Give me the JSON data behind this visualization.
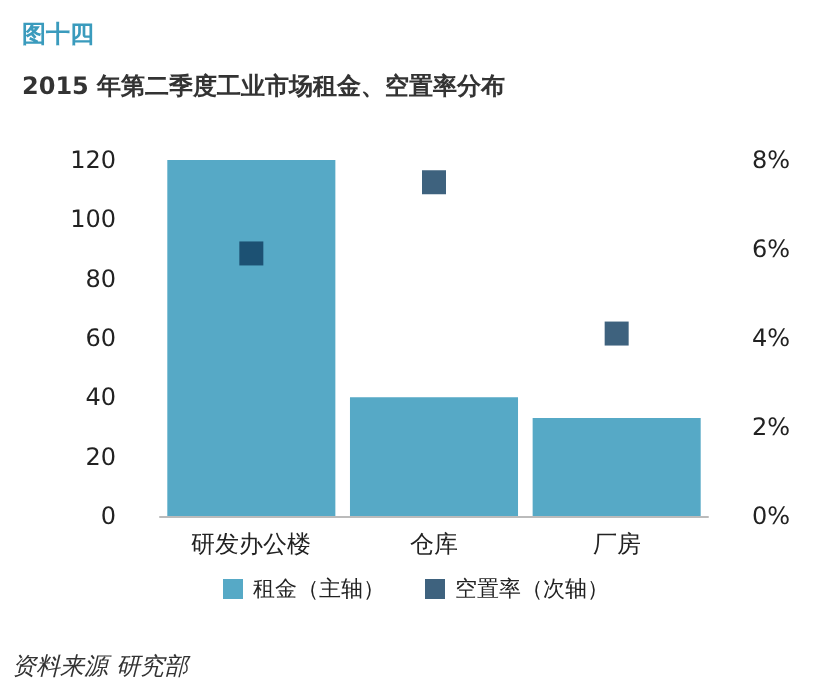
{
  "chart_data": {
    "type": "bar",
    "title": "图十四",
    "subtitle": "2015 年第二季度工业市场租金、空置率分布",
    "categories": [
      "研发办公楼",
      "仓库",
      "厂房"
    ],
    "series": [
      {
        "name": "租金（主轴）",
        "color": "#56a9c6",
        "values": [
          120,
          40,
          33
        ]
      },
      {
        "name": "空置率（次轴）",
        "type": "scatter",
        "axis": "y2",
        "color": "#0e3b5e",
        "values": [
          5.9,
          7.5,
          4.1
        ]
      }
    ],
    "ylim": [
      0,
      120
    ],
    "yticks": [
      0,
      20,
      40,
      60,
      80,
      100,
      120
    ],
    "y2lim": [
      0,
      8
    ],
    "y2ticks": [
      {
        "value": 0,
        "label": "0%"
      },
      {
        "value": 2,
        "label": "2%"
      },
      {
        "value": 4,
        "label": "4%"
      },
      {
        "value": 6,
        "label": "6%"
      },
      {
        "value": 8,
        "label": "8%"
      }
    ],
    "marker": "square",
    "grid": false,
    "legend": "bottom",
    "annotations": [
      "资料来源 研究部"
    ]
  }
}
